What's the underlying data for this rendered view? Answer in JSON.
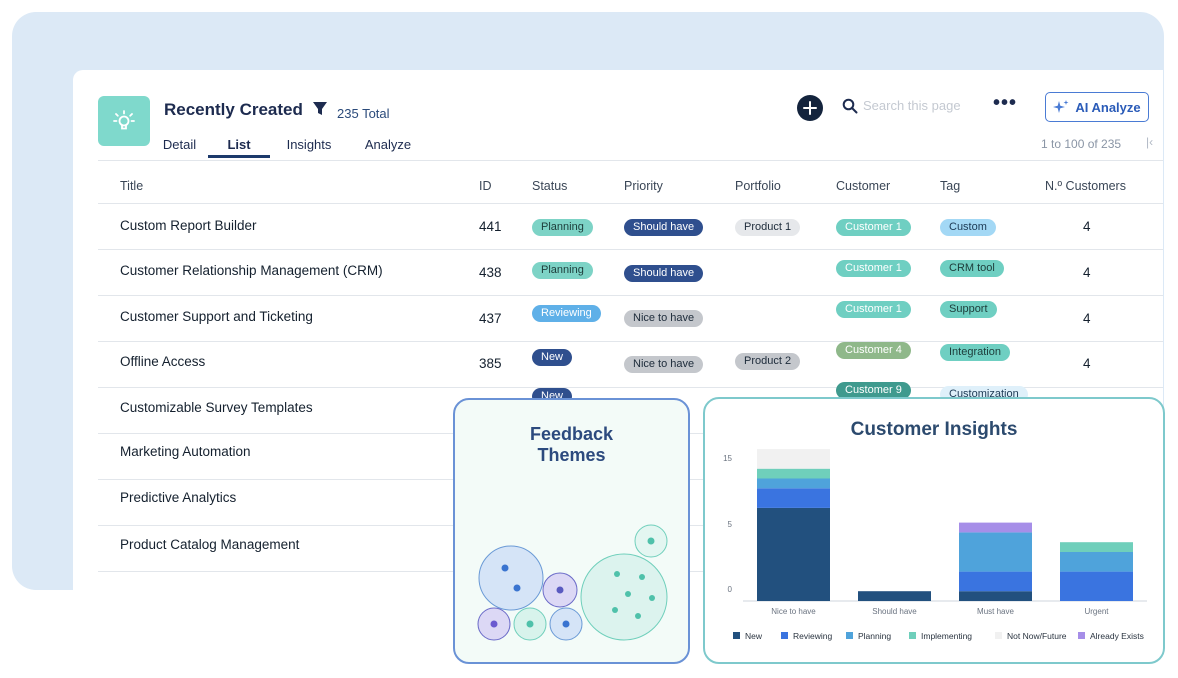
{
  "header": {
    "title": "Recently Created",
    "total": "235 Total",
    "tabs": [
      {
        "label": "Detail"
      },
      {
        "label": "List"
      },
      {
        "label": "Insights"
      },
      {
        "label": "Analyze"
      }
    ],
    "active_tab": "List",
    "search_placeholder": "Search this page",
    "ai_button": "AI Analyze",
    "pager": "1 to 100 of 235"
  },
  "table": {
    "columns": [
      "Title",
      "ID",
      "Status",
      "Priority",
      "Portfolio",
      "Customer",
      "Tag",
      "N.º Customers"
    ],
    "rows": [
      {
        "title": "Custom Report Builder",
        "id": "441",
        "status": "Planning",
        "priority": "Should have",
        "portfolio": "Product 1",
        "customer": "Customer 1",
        "tag": "Custom",
        "count": "4"
      },
      {
        "title": "Customer Relationship Management (CRM)",
        "id": "438",
        "status": "Planning",
        "priority": "Should have",
        "portfolio": "",
        "customer": "Customer 1",
        "tag": "CRM tool",
        "count": "4"
      },
      {
        "title": "Customer Support and Ticketing",
        "id": "437",
        "status": "Reviewing",
        "priority": "Nice to have",
        "portfolio": "",
        "customer": "Customer 1",
        "tag": "Support",
        "count": "4"
      },
      {
        "title": "Offline Access",
        "id": "385",
        "status": "New",
        "priority": "Nice to have",
        "portfolio": "Product 2",
        "customer": "Customer 4",
        "tag": "Integration",
        "count": "4"
      },
      {
        "title": "Customizable Survey Templates",
        "id": "",
        "status": "New",
        "priority": "",
        "portfolio": "",
        "customer": "Customer 9",
        "tag": "Customization",
        "count": ""
      },
      {
        "title": "Marketing Automation",
        "id": "",
        "status": "",
        "priority": "",
        "portfolio": "",
        "customer": "",
        "tag": "",
        "count": ""
      },
      {
        "title": "Predictive Analytics",
        "id": "",
        "status": "",
        "priority": "",
        "portfolio": "",
        "customer": "",
        "tag": "",
        "count": ""
      },
      {
        "title": "Product Catalog Management",
        "id": "",
        "status": "",
        "priority": "",
        "portfolio": "",
        "customer": "",
        "tag": "",
        "count": ""
      }
    ]
  },
  "colors": {
    "Planning": "#7dd3c6",
    "Reviewing": "#5fb0e8",
    "New": "#2f4f8e",
    "Should have": "#2f4f8e",
    "Nice to have": "#c4c7cc",
    "Product": "#e6e8eb",
    "Customer 1": "#6fcfc2",
    "Customer 4": "#8fb88a",
    "Customer 9": "#3f9a8e",
    "Custom": "#a3d8f5",
    "CRM tool": "#6fcfc2",
    "Support": "#6fcfc2",
    "Integration": "#6fcfc2",
    "Customization": "#dff0fa"
  },
  "feedback_themes": {
    "title": "Feedback Themes"
  },
  "chart_data": {
    "type": "bar",
    "stacked": true,
    "title": "Customer Insights",
    "categories": [
      "Nice to have",
      "Should have",
      "Must have",
      "Urgent"
    ],
    "yticks": [
      0,
      5,
      15
    ],
    "ylim": [
      0,
      18
    ],
    "series": [
      {
        "name": "New",
        "color": "#22507e",
        "values": [
          9.5,
          1,
          1,
          0
        ]
      },
      {
        "name": "Reviewing",
        "color": "#3a74e0",
        "values": [
          2,
          0,
          2,
          3
        ]
      },
      {
        "name": "Planning",
        "color": "#4fa3db",
        "values": [
          1,
          0,
          4,
          2
        ]
      },
      {
        "name": "Implementing",
        "color": "#6fcfbb",
        "values": [
          1,
          0,
          0,
          1
        ]
      },
      {
        "name": "Not Now/Future",
        "color": "#f1f1f1",
        "values": [
          2,
          0,
          0,
          0
        ]
      },
      {
        "name": "Already Exists",
        "color": "#a68ee8",
        "values": [
          0,
          0,
          1,
          0
        ]
      }
    ]
  }
}
